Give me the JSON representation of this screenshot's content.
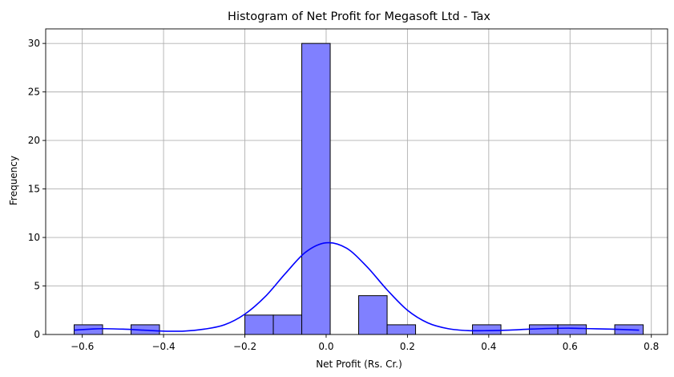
{
  "chart_data": {
    "type": "bar",
    "title": "Histogram of Net Profit for Megasoft Ltd - Tax",
    "xlabel": "Net Profit (Rs. Cr.)",
    "ylabel": "Frequency",
    "xlim": [
      -0.69,
      0.84
    ],
    "ylim": [
      0,
      31.5
    ],
    "x_ticks": [
      -0.6,
      -0.4,
      -0.2,
      0.0,
      0.2,
      0.4,
      0.6,
      0.8
    ],
    "x_tick_labels": [
      "−0.6",
      "−0.4",
      "−0.2",
      "0.0",
      "0.2",
      "0.4",
      "0.6",
      "0.8"
    ],
    "y_ticks": [
      0,
      5,
      10,
      15,
      20,
      25,
      30
    ],
    "y_tick_labels": [
      "0",
      "5",
      "10",
      "15",
      "20",
      "25",
      "30"
    ],
    "grid": true,
    "bar_color": "#8080ff",
    "kde_color": "#0000ff",
    "bins": [
      {
        "x0": -0.62,
        "x1": -0.55,
        "count": 1
      },
      {
        "x0": -0.48,
        "x1": -0.41,
        "count": 1
      },
      {
        "x0": -0.2,
        "x1": -0.13,
        "count": 2
      },
      {
        "x0": -0.13,
        "x1": -0.06,
        "count": 2
      },
      {
        "x0": -0.06,
        "x1": 0.01,
        "count": 30
      },
      {
        "x0": 0.08,
        "x1": 0.15,
        "count": 4
      },
      {
        "x0": 0.15,
        "x1": 0.22,
        "count": 1
      },
      {
        "x0": 0.36,
        "x1": 0.43,
        "count": 1
      },
      {
        "x0": 0.5,
        "x1": 0.57,
        "count": 1
      },
      {
        "x0": 0.57,
        "x1": 0.64,
        "count": 1
      },
      {
        "x0": 0.71,
        "x1": 0.78,
        "count": 1
      }
    ],
    "kde": {
      "x": [
        -0.62,
        -0.58,
        -0.55,
        -0.5,
        -0.45,
        -0.4,
        -0.35,
        -0.3,
        -0.25,
        -0.2,
        -0.15,
        -0.1,
        -0.05,
        0.0,
        0.05,
        0.1,
        0.15,
        0.2,
        0.25,
        0.3,
        0.35,
        0.4,
        0.45,
        0.5,
        0.55,
        0.6,
        0.65,
        0.7,
        0.77
      ],
      "y": [
        0.45,
        0.55,
        0.6,
        0.55,
        0.45,
        0.35,
        0.35,
        0.55,
        1.0,
        2.1,
        3.9,
        6.3,
        8.5,
        9.45,
        8.9,
        7.0,
        4.6,
        2.5,
        1.2,
        0.6,
        0.4,
        0.4,
        0.45,
        0.55,
        0.62,
        0.65,
        0.6,
        0.55,
        0.45
      ]
    }
  }
}
